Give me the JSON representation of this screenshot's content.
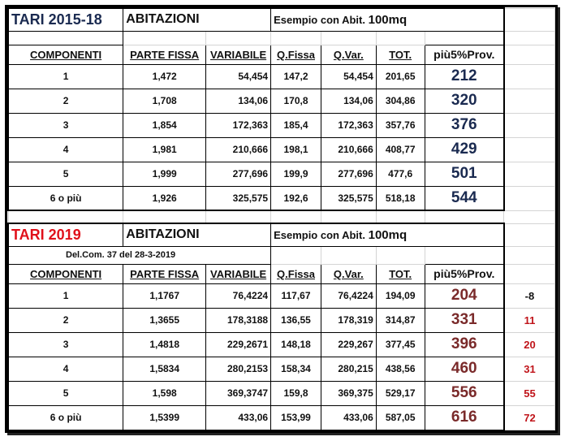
{
  "sheet1": {
    "title": "TARI 2015-18",
    "section": "ABITAZIONI",
    "example_label": "Esempio con Abit.",
    "example_value": "100mq",
    "headers": [
      "COMPONENTI",
      "PARTE FISSA",
      "VARIABILE",
      "Q.Fissa",
      "Q.Var.",
      "TOT.",
      "più5%Prov."
    ],
    "rows": [
      {
        "comp": "1",
        "fissa": "1,472",
        "var": "54,454",
        "qf": "147,2",
        "qv": "54,454",
        "tot": "201,65",
        "prov": "212"
      },
      {
        "comp": "2",
        "fissa": "1,708",
        "var": "134,06",
        "qf": "170,8",
        "qv": "134,06",
        "tot": "304,86",
        "prov": "320"
      },
      {
        "comp": "3",
        "fissa": "1,854",
        "var": "172,363",
        "qf": "185,4",
        "qv": "172,363",
        "tot": "357,76",
        "prov": "376"
      },
      {
        "comp": "4",
        "fissa": "1,981",
        "var": "210,666",
        "qf": "198,1",
        "qv": "210,666",
        "tot": "408,77",
        "prov": "429"
      },
      {
        "comp": "5",
        "fissa": "1,999",
        "var": "277,696",
        "qf": "199,9",
        "qv": "277,696",
        "tot": "477,6",
        "prov": "501"
      },
      {
        "comp": "6 o più",
        "fissa": "1,926",
        "var": "325,575",
        "qf": "192,6",
        "qv": "325,575",
        "tot": "518,18",
        "prov": "544"
      }
    ]
  },
  "sheet2": {
    "title": "TARI 2019",
    "section": "ABITAZIONI",
    "example_label": "Esempio con Abit.",
    "example_value": "100mq",
    "note": "Del.Com. 37 del 28-3-2019",
    "headers": [
      "COMPONENTI",
      "PARTE FISSA",
      "VARIABILE",
      "Q.Fissa",
      "Q.Var.",
      "TOT.",
      "più5%Prov."
    ],
    "rows": [
      {
        "comp": "1",
        "fissa": "1,1767",
        "var": "76,4224",
        "qf": "117,67",
        "qv": "76,4224",
        "tot": "194,09",
        "prov": "204",
        "diff": "-8"
      },
      {
        "comp": "2",
        "fissa": "1,3655",
        "var": "178,3188",
        "qf": "136,55",
        "qv": "178,319",
        "tot": "314,87",
        "prov": "331",
        "diff": "11"
      },
      {
        "comp": "3",
        "fissa": "1,4818",
        "var": "229,2671",
        "qf": "148,18",
        "qv": "229,267",
        "tot": "377,45",
        "prov": "396",
        "diff": "20"
      },
      {
        "comp": "4",
        "fissa": "1,5834",
        "var": "280,2153",
        "qf": "158,34",
        "qv": "280,215",
        "tot": "438,56",
        "prov": "460",
        "diff": "31"
      },
      {
        "comp": "5",
        "fissa": "1,598",
        "var": "369,3747",
        "qf": "159,8",
        "qv": "369,375",
        "tot": "529,17",
        "prov": "556",
        "diff": "55"
      },
      {
        "comp": "6 o più",
        "fissa": "1,5399",
        "var": "433,06",
        "qf": "153,99",
        "qv": "433,06",
        "tot": "587,05",
        "prov": "616",
        "diff": "72"
      }
    ]
  },
  "colors": {
    "title_blue": "#1a2a50",
    "title_red": "#e0101a",
    "prov_2019": "#7a2a2a",
    "diff_red": "#c0141a"
  }
}
